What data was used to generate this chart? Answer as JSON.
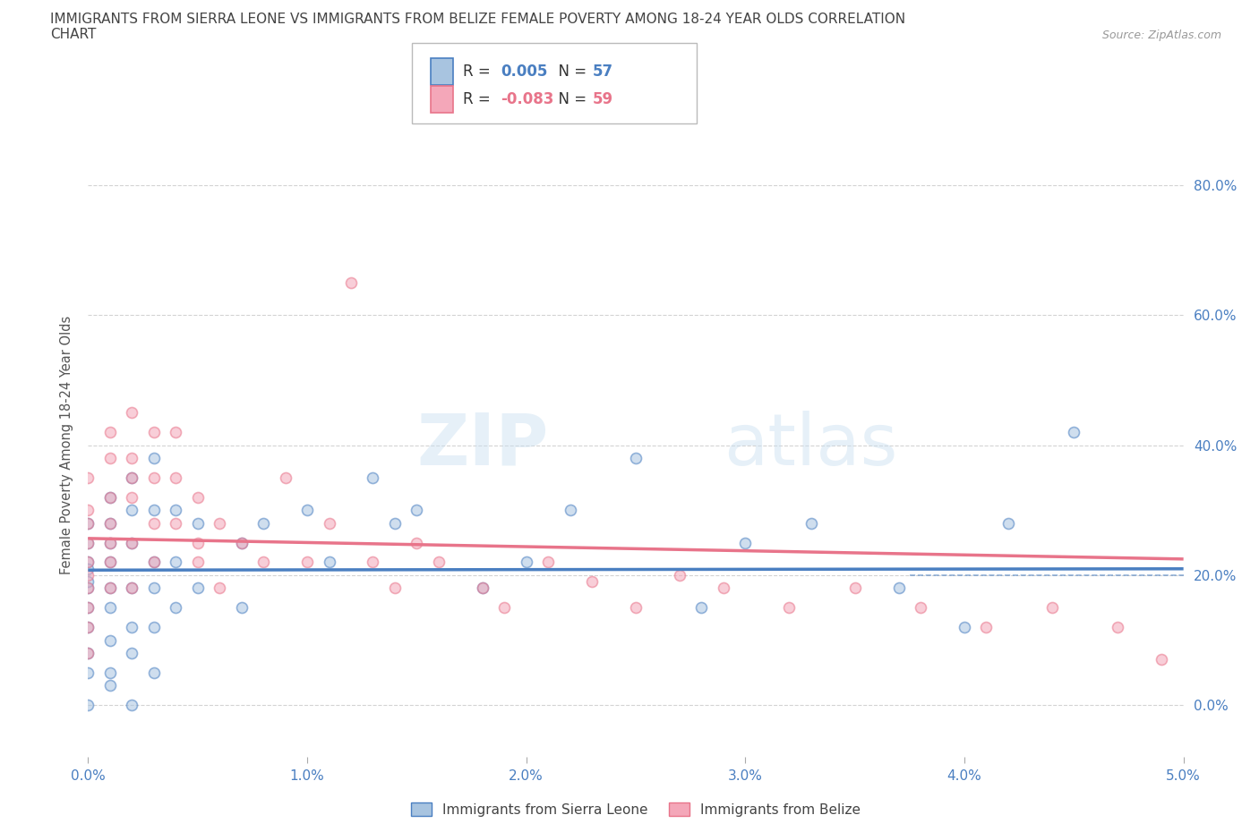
{
  "title_line1": "IMMIGRANTS FROM SIERRA LEONE VS IMMIGRANTS FROM BELIZE FEMALE POVERTY AMONG 18-24 YEAR OLDS CORRELATION",
  "title_line2": "CHART",
  "source_text": "Source: ZipAtlas.com",
  "series1_name": "Immigrants from Sierra Leone",
  "series2_name": "Immigrants from Belize",
  "series1_color": "#a8c4e0",
  "series2_color": "#f4a7b9",
  "series1_line_color": "#4a7fc1",
  "series2_line_color": "#e8748a",
  "series1_R": 0.005,
  "series1_N": 57,
  "series2_R": -0.083,
  "series2_N": 59,
  "watermark_zip": "ZIP",
  "watermark_atlas": "atlas",
  "xlim": [
    0.0,
    0.05
  ],
  "ylim": [
    -0.08,
    0.88
  ],
  "xtick_vals": [
    0.0,
    0.01,
    0.02,
    0.03,
    0.04,
    0.05
  ],
  "ytick_vals": [
    0.0,
    0.2,
    0.4,
    0.6,
    0.8
  ],
  "ylabel_labels": [
    "0.0%",
    "20.0%",
    "40.0%",
    "60.0%",
    "80.0%"
  ],
  "xlabel_labels": [
    "0.0%",
    "1.0%",
    "2.0%",
    "3.0%",
    "4.0%",
    "5.0%"
  ],
  "series1_x": [
    0.0,
    0.0,
    0.0,
    0.0,
    0.0,
    0.0,
    0.0,
    0.0,
    0.0,
    0.0,
    0.001,
    0.001,
    0.001,
    0.001,
    0.001,
    0.001,
    0.001,
    0.001,
    0.002,
    0.002,
    0.002,
    0.002,
    0.002,
    0.002,
    0.003,
    0.003,
    0.003,
    0.003,
    0.003,
    0.004,
    0.004,
    0.004,
    0.005,
    0.005,
    0.007,
    0.007,
    0.008,
    0.01,
    0.011,
    0.013,
    0.014,
    0.015,
    0.018,
    0.02,
    0.022,
    0.025,
    0.028,
    0.03,
    0.033,
    0.037,
    0.04,
    0.042,
    0.045,
    0.003,
    0.002,
    0.001,
    0.0
  ],
  "series1_y": [
    0.22,
    0.18,
    0.15,
    0.25,
    0.19,
    0.12,
    0.08,
    0.05,
    0.28,
    0.21,
    0.32,
    0.28,
    0.22,
    0.18,
    0.15,
    0.25,
    0.1,
    0.05,
    0.35,
    0.3,
    0.25,
    0.18,
    0.12,
    0.08,
    0.38,
    0.3,
    0.22,
    0.18,
    0.12,
    0.3,
    0.22,
    0.15,
    0.28,
    0.18,
    0.25,
    0.15,
    0.28,
    0.3,
    0.22,
    0.35,
    0.28,
    0.3,
    0.18,
    0.22,
    0.3,
    0.38,
    0.15,
    0.25,
    0.28,
    0.18,
    0.12,
    0.28,
    0.42,
    0.05,
    0.0,
    0.03,
    0.0
  ],
  "series2_x": [
    0.0,
    0.0,
    0.0,
    0.0,
    0.0,
    0.0,
    0.0,
    0.0,
    0.0,
    0.0,
    0.001,
    0.001,
    0.001,
    0.001,
    0.001,
    0.001,
    0.001,
    0.002,
    0.002,
    0.002,
    0.002,
    0.002,
    0.002,
    0.003,
    0.003,
    0.003,
    0.003,
    0.004,
    0.004,
    0.004,
    0.005,
    0.005,
    0.005,
    0.006,
    0.006,
    0.007,
    0.008,
    0.009,
    0.01,
    0.011,
    0.012,
    0.013,
    0.014,
    0.015,
    0.016,
    0.018,
    0.019,
    0.021,
    0.023,
    0.025,
    0.027,
    0.029,
    0.032,
    0.035,
    0.038,
    0.041,
    0.044,
    0.047,
    0.049
  ],
  "series2_y": [
    0.25,
    0.22,
    0.18,
    0.3,
    0.15,
    0.35,
    0.12,
    0.08,
    0.28,
    0.2,
    0.38,
    0.32,
    0.28,
    0.22,
    0.18,
    0.25,
    0.42,
    0.45,
    0.38,
    0.32,
    0.25,
    0.18,
    0.35,
    0.42,
    0.35,
    0.28,
    0.22,
    0.35,
    0.28,
    0.42,
    0.25,
    0.32,
    0.22,
    0.28,
    0.18,
    0.25,
    0.22,
    0.35,
    0.22,
    0.28,
    0.65,
    0.22,
    0.18,
    0.25,
    0.22,
    0.18,
    0.15,
    0.22,
    0.19,
    0.15,
    0.2,
    0.18,
    0.15,
    0.18,
    0.15,
    0.12,
    0.15,
    0.12,
    0.07
  ],
  "background_color": "#ffffff",
  "grid_color": "#c8c8c8",
  "title_color": "#444444",
  "axis_color": "#4a7fc1",
  "marker_size": 75,
  "marker_alpha": 0.55,
  "marker_edge_width": 1.2
}
